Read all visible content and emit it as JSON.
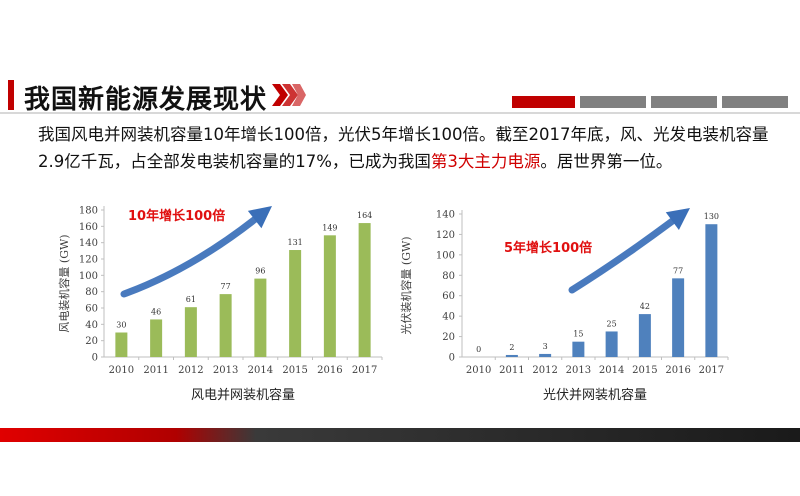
{
  "header": {
    "title": "我国新能源发展现状"
  },
  "body": {
    "text_before": "我国风电并网装机容量10年增长100倍，光伏5年增长100倍。截至2017年底，风、光发电装机容量2.9亿千瓦，占全部发电装机容量的17%，已成为我国",
    "highlight": "第3大主力电源",
    "text_after": "。居世界第一位。"
  },
  "colors": {
    "accent_red": "#c00000",
    "highlight_red": "#d00000",
    "wind_bar": "#9bbb59",
    "solar_bar": "#4f81bd",
    "arrow_blue": "#3a6fb8",
    "band_dark": "#222222",
    "segment_gray": "#7f7f7f"
  },
  "chart_data": [
    {
      "type": "bar",
      "title": "风电并网装机容量",
      "ylabel": "风电装机容量 (GW)",
      "categories": [
        "2010",
        "2011",
        "2012",
        "2013",
        "2014",
        "2015",
        "2016",
        "2017"
      ],
      "values": [
        30,
        46,
        61,
        77,
        96,
        131,
        149,
        164
      ],
      "data_labels": [
        "30",
        "46",
        "61",
        "77",
        "96",
        "131",
        "149",
        "164"
      ],
      "ylim": [
        0,
        180
      ],
      "yticks": [
        "0",
        "20",
        "40",
        "60",
        "80",
        "100",
        "120",
        "140",
        "160",
        "180"
      ],
      "annotation": "10年增长100倍",
      "grid": false
    },
    {
      "type": "bar",
      "title": "光伏并网装机容量",
      "ylabel": "光伏装机容量 (GW)",
      "categories": [
        "2010",
        "2011",
        "2012",
        "2013",
        "2014",
        "2015",
        "2016",
        "2017"
      ],
      "values": [
        0,
        2,
        3,
        15,
        25,
        42,
        77,
        130
      ],
      "data_labels": [
        "0",
        "2",
        "3",
        "15",
        "25",
        "42",
        "77",
        "130"
      ],
      "ylim": [
        0,
        140
      ],
      "yticks": [
        "0",
        "20",
        "40",
        "60",
        "80",
        "100",
        "120",
        "140"
      ],
      "annotation": "5年增长100倍",
      "grid": false
    }
  ]
}
